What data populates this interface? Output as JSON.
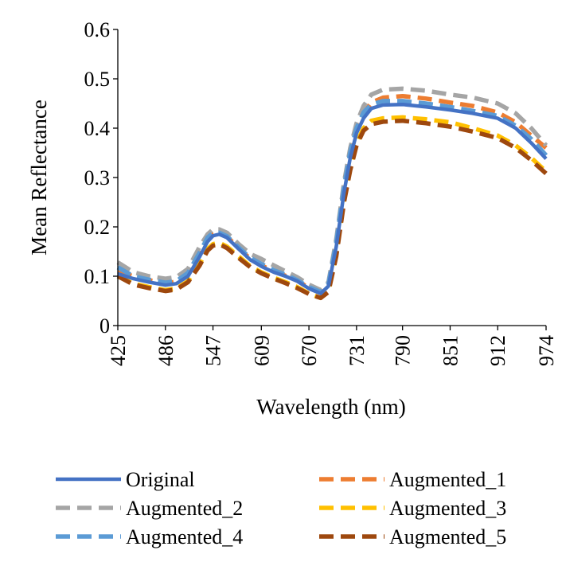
{
  "chart_data": {
    "type": "line",
    "xlabel": "Wavelength (nm)",
    "ylabel": "Mean Reflectance",
    "xlim": [
      425,
      974
    ],
    "ylim": [
      0,
      0.6
    ],
    "x_ticks": [
      425,
      486,
      547,
      609,
      670,
      731,
      790,
      851,
      912,
      974
    ],
    "y_ticks": [
      0,
      0.1,
      0.2,
      0.3,
      0.4,
      0.5,
      0.6
    ],
    "y_tick_labels": [
      "0",
      "0.1",
      "0.2",
      "0.3",
      "0.4",
      "0.5",
      "0.6"
    ],
    "grid": false,
    "legend_position": "bottom",
    "x": [
      425,
      445,
      465,
      486,
      500,
      515,
      530,
      540,
      547,
      555,
      565,
      580,
      595,
      609,
      625,
      640,
      655,
      670,
      685,
      695,
      705,
      715,
      723,
      731,
      740,
      750,
      765,
      790,
      820,
      851,
      880,
      912,
      935,
      955,
      974
    ],
    "series": [
      {
        "name": "Original",
        "color": "#4472C4",
        "style": "solid",
        "values": [
          0.105,
          0.095,
          0.088,
          0.082,
          0.085,
          0.1,
          0.14,
          0.17,
          0.182,
          0.185,
          0.178,
          0.155,
          0.133,
          0.12,
          0.108,
          0.1,
          0.09,
          0.075,
          0.065,
          0.08,
          0.16,
          0.27,
          0.34,
          0.39,
          0.42,
          0.44,
          0.447,
          0.448,
          0.443,
          0.437,
          0.43,
          0.42,
          0.4,
          0.37,
          0.338
        ]
      },
      {
        "name": "Augmented_1",
        "color": "#ED7D31",
        "style": "dashed",
        "values": [
          0.11,
          0.1,
          0.092,
          0.086,
          0.089,
          0.105,
          0.145,
          0.175,
          0.185,
          0.187,
          0.18,
          0.157,
          0.135,
          0.122,
          0.11,
          0.101,
          0.091,
          0.076,
          0.066,
          0.082,
          0.165,
          0.28,
          0.35,
          0.395,
          0.43,
          0.452,
          0.462,
          0.465,
          0.46,
          0.452,
          0.445,
          0.432,
          0.412,
          0.385,
          0.36
        ]
      },
      {
        "name": "Augmented_2",
        "color": "#A5A5A5",
        "style": "dashed",
        "values": [
          0.128,
          0.108,
          0.1,
          0.095,
          0.098,
          0.115,
          0.16,
          0.185,
          0.195,
          0.195,
          0.188,
          0.165,
          0.145,
          0.135,
          0.122,
          0.11,
          0.098,
          0.083,
          0.072,
          0.088,
          0.175,
          0.29,
          0.36,
          0.41,
          0.445,
          0.468,
          0.478,
          0.48,
          0.476,
          0.468,
          0.462,
          0.45,
          0.43,
          0.4,
          0.365
        ]
      },
      {
        "name": "Augmented_3",
        "color": "#FFC000",
        "style": "dashed",
        "values": [
          0.1,
          0.085,
          0.078,
          0.072,
          0.075,
          0.09,
          0.125,
          0.155,
          0.165,
          0.168,
          0.16,
          0.14,
          0.12,
          0.108,
          0.097,
          0.088,
          0.078,
          0.065,
          0.056,
          0.07,
          0.145,
          0.255,
          0.32,
          0.37,
          0.4,
          0.415,
          0.42,
          0.422,
          0.418,
          0.412,
          0.4,
          0.385,
          0.365,
          0.34,
          0.312
        ]
      },
      {
        "name": "Augmented_4",
        "color": "#5B9BD5",
        "style": "dashed",
        "values": [
          0.118,
          0.1,
          0.093,
          0.087,
          0.09,
          0.107,
          0.148,
          0.178,
          0.188,
          0.188,
          0.181,
          0.158,
          0.137,
          0.125,
          0.112,
          0.103,
          0.092,
          0.078,
          0.068,
          0.084,
          0.168,
          0.282,
          0.352,
          0.4,
          0.432,
          0.448,
          0.455,
          0.455,
          0.45,
          0.443,
          0.435,
          0.425,
          0.405,
          0.378,
          0.345
        ]
      },
      {
        "name": "Augmented_5",
        "color": "#9E480E",
        "style": "dashed",
        "values": [
          0.1,
          0.083,
          0.076,
          0.07,
          0.073,
          0.088,
          0.122,
          0.152,
          0.162,
          0.165,
          0.157,
          0.137,
          0.118,
          0.106,
          0.095,
          0.086,
          0.076,
          0.064,
          0.056,
          0.068,
          0.14,
          0.25,
          0.315,
          0.365,
          0.395,
          0.408,
          0.413,
          0.415,
          0.41,
          0.403,
          0.393,
          0.38,
          0.36,
          0.335,
          0.308
        ]
      }
    ],
    "legend_order": [
      "Original",
      "Augmented_1",
      "Augmented_2",
      "Augmented_3",
      "Augmented_4",
      "Augmented_5"
    ]
  }
}
